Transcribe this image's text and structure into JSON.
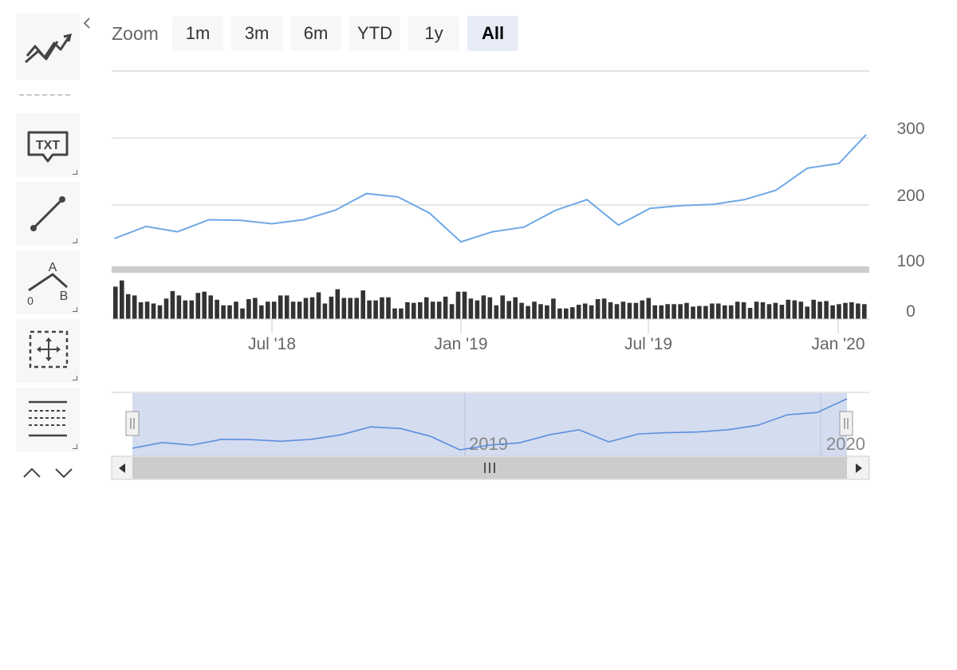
{
  "range_selector": {
    "zoom_label": "Zoom",
    "buttons": [
      "1m",
      "3m",
      "6m",
      "YTD",
      "1y",
      "All"
    ],
    "active": "All"
  },
  "toolbar": {
    "txt_label": "TXT",
    "fib_labels": {
      "a": "A",
      "zero": "0",
      "b": "B"
    },
    "icons": [
      "indicators-icon",
      "text-annotation-icon",
      "line-segment-icon",
      "elliott-wave-icon",
      "crosshair-move-icon",
      "fibonacci-icon",
      "arrow-up-icon",
      "arrow-down-icon"
    ]
  },
  "colors": {
    "price": "#6fa8e6",
    "volume": "#333333",
    "navigator_fill": "#d4dcf0",
    "navigator_line": "#5b8fdc",
    "grid": "#d8d8d8",
    "scrollbar": "#cccccc"
  },
  "chart_data": {
    "type": "line",
    "price_axis": {
      "ticks": [
        "300",
        "200",
        "100",
        "0"
      ],
      "ylim": [
        0,
        300
      ]
    },
    "x_ticks": [
      "Jul '18",
      "Jan '19",
      "Jul '19",
      "Jan '20"
    ],
    "navigator_ticks": [
      "2019",
      "2020"
    ],
    "series": [
      {
        "kind": "price",
        "x": [
          "2018-02",
          "2018-03",
          "2018-04",
          "2018-05",
          "2018-06",
          "2018-07",
          "2018-08",
          "2018-09",
          "2018-10",
          "2018-11",
          "2018-12",
          "2019-01",
          "2019-02",
          "2019-03",
          "2019-04",
          "2019-05",
          "2019-06",
          "2019-07",
          "2019-08",
          "2019-09",
          "2019-10",
          "2019-11",
          "2019-12",
          "2020-01",
          "2020-02"
        ],
        "values": [
          150,
          168,
          160,
          178,
          177,
          172,
          178,
          192,
          217,
          212,
          188,
          145,
          160,
          167,
          192,
          208,
          170,
          195,
          199,
          201,
          208,
          222,
          255,
          262,
          305
        ]
      },
      {
        "kind": "volume",
        "values": [
          52,
          62,
          40,
          38,
          27,
          28,
          25,
          22,
          33,
          45,
          38,
          30,
          30,
          42,
          44,
          38,
          31,
          22,
          22,
          28,
          17,
          32,
          34,
          22,
          28,
          28,
          38,
          38,
          28,
          28,
          34,
          35,
          43,
          25,
          36,
          48,
          34,
          34,
          34,
          46,
          30,
          30,
          35,
          35,
          17,
          17,
          27,
          26,
          27,
          35,
          28,
          28,
          36,
          24,
          44,
          44,
          33,
          30,
          38,
          35,
          22,
          38,
          29,
          35,
          26,
          21,
          28,
          24,
          22,
          33,
          17,
          17,
          19,
          23,
          25,
          22,
          32,
          33,
          27,
          24,
          28,
          26,
          26,
          30,
          34,
          22,
          22,
          24,
          24,
          24,
          26,
          20,
          21,
          21,
          25,
          25,
          22,
          22,
          28,
          27,
          18,
          28,
          27,
          24,
          26,
          23,
          31,
          30,
          28,
          20,
          31,
          28,
          29,
          22,
          24,
          26,
          27,
          25,
          24
        ]
      }
    ]
  }
}
